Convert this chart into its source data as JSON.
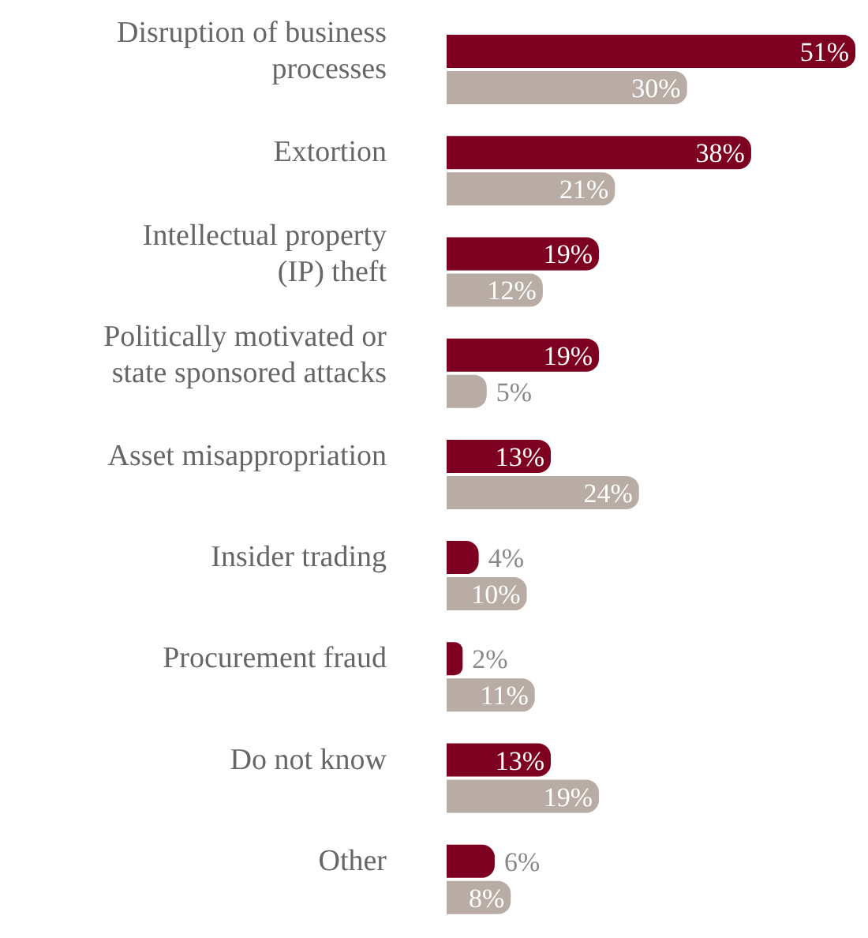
{
  "chart_data": {
    "type": "bar",
    "orientation": "horizontal",
    "categories": [
      "Disruption of business processes",
      "Extortion",
      "Intellectual property (IP) theft",
      "Politically motivated or state sponsored attacks",
      "Asset misappropriation",
      "Insider trading",
      "Procurement fraud",
      "Do not know",
      "Other"
    ],
    "series": [
      {
        "color": "#7d0020",
        "values": [
          51,
          38,
          19,
          19,
          13,
          4,
          2,
          13,
          6
        ],
        "value_labels": [
          "51%",
          "38%",
          "19%",
          "19%",
          "13%",
          "4%",
          "2%",
          "13%",
          "6%"
        ]
      },
      {
        "color": "#b8aca5",
        "values": [
          30,
          21,
          12,
          5,
          24,
          10,
          11,
          19,
          8
        ],
        "value_labels": [
          "30%",
          "21%",
          "12%",
          "5%",
          "24%",
          "10%",
          "11%",
          "19%",
          "8%"
        ]
      }
    ],
    "tick_labels": "y"
  }
}
